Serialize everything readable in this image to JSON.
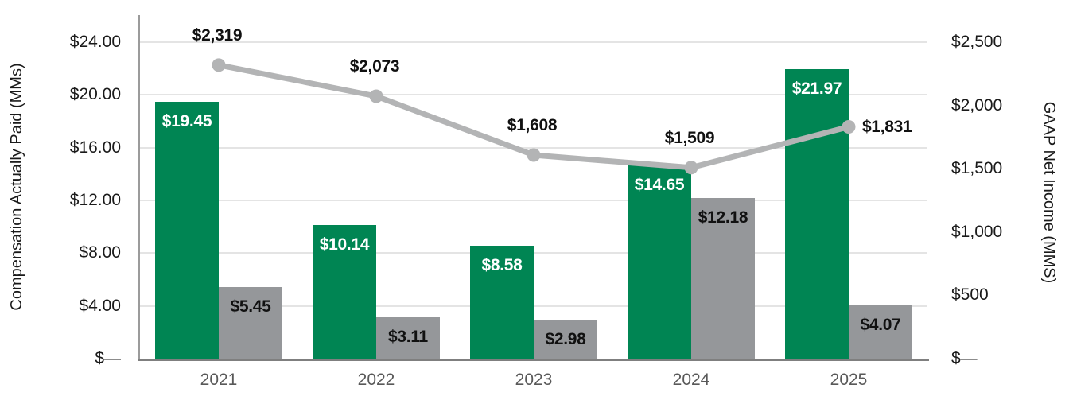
{
  "chart_data": {
    "type": "combo_bar_line",
    "categories": [
      "2021",
      "2022",
      "2023",
      "2024",
      "2025"
    ],
    "left_axis": {
      "title": "Compensation Actually Paid (MMs)",
      "tick_labels": [
        "$24.00",
        "$20.00",
        "$16.00",
        "$12.00",
        "$8.00",
        "$4.00",
        "$—"
      ],
      "tick_values": [
        24,
        20,
        16,
        12,
        8,
        4,
        0
      ],
      "range": [
        0,
        24
      ]
    },
    "right_axis": {
      "title": "GAAP Net Income (MMS)",
      "tick_labels": [
        "$2,500",
        "$2,000",
        "$1,500",
        "$1,000",
        "$500",
        "$—"
      ],
      "tick_values": [
        2500,
        2000,
        1500,
        1000,
        500,
        0
      ],
      "range": [
        0,
        2500
      ]
    },
    "x_axis": {
      "labels": [
        "2021",
        "2022",
        "2023",
        "2024",
        "2025"
      ],
      "label_color": "#595959"
    },
    "series": [
      {
        "id": "bar-series-green",
        "type": "bar",
        "axis": "left",
        "color": "#008553",
        "label_color": "#ffffff",
        "values": [
          19.45,
          10.14,
          8.58,
          14.65,
          21.97
        ],
        "data_labels": [
          "$19.45",
          "$10.14",
          "$8.58",
          "$14.65",
          "$21.97"
        ]
      },
      {
        "id": "bar-series-gray",
        "type": "bar",
        "axis": "left",
        "color": "#95979a",
        "label_color": "#111111",
        "values": [
          5.45,
          3.11,
          2.98,
          12.18,
          4.07
        ],
        "data_labels": [
          "$5.45",
          "$3.11",
          "$2.98",
          "$12.18",
          "$4.07"
        ]
      },
      {
        "id": "line-series-net-income",
        "type": "line",
        "axis": "right",
        "color": "#b3b4b5",
        "label_color": "#111111",
        "values": [
          2319,
          2073,
          1608,
          1509,
          1831
        ],
        "data_labels": [
          "$2,319",
          "$2,073",
          "$1,608",
          "$1,509",
          "$1,831"
        ]
      }
    ],
    "grid": {
      "horizontal": true,
      "color": "#e4e4e4"
    },
    "axis_line_color": "#9b9b9b",
    "baseline_color": "#7f7f7f",
    "legend": null
  }
}
